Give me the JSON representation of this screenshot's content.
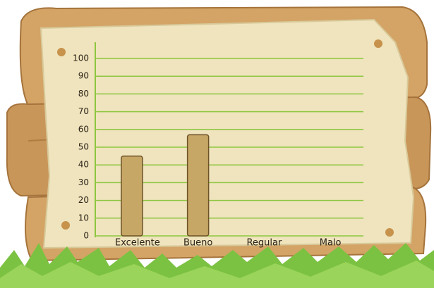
{
  "chart_data": {
    "type": "bar",
    "categories": [
      "Excelente",
      "Bueno",
      "Regular",
      "Malo"
    ],
    "values": [
      45,
      57,
      0,
      0
    ],
    "color": "#c7a766",
    "grid_color": "#8dc63f",
    "ylim": [
      0,
      100
    ],
    "yticks": [
      0,
      10,
      20,
      30,
      40,
      50,
      60,
      70,
      80,
      90,
      100
    ],
    "grid": true
  }
}
